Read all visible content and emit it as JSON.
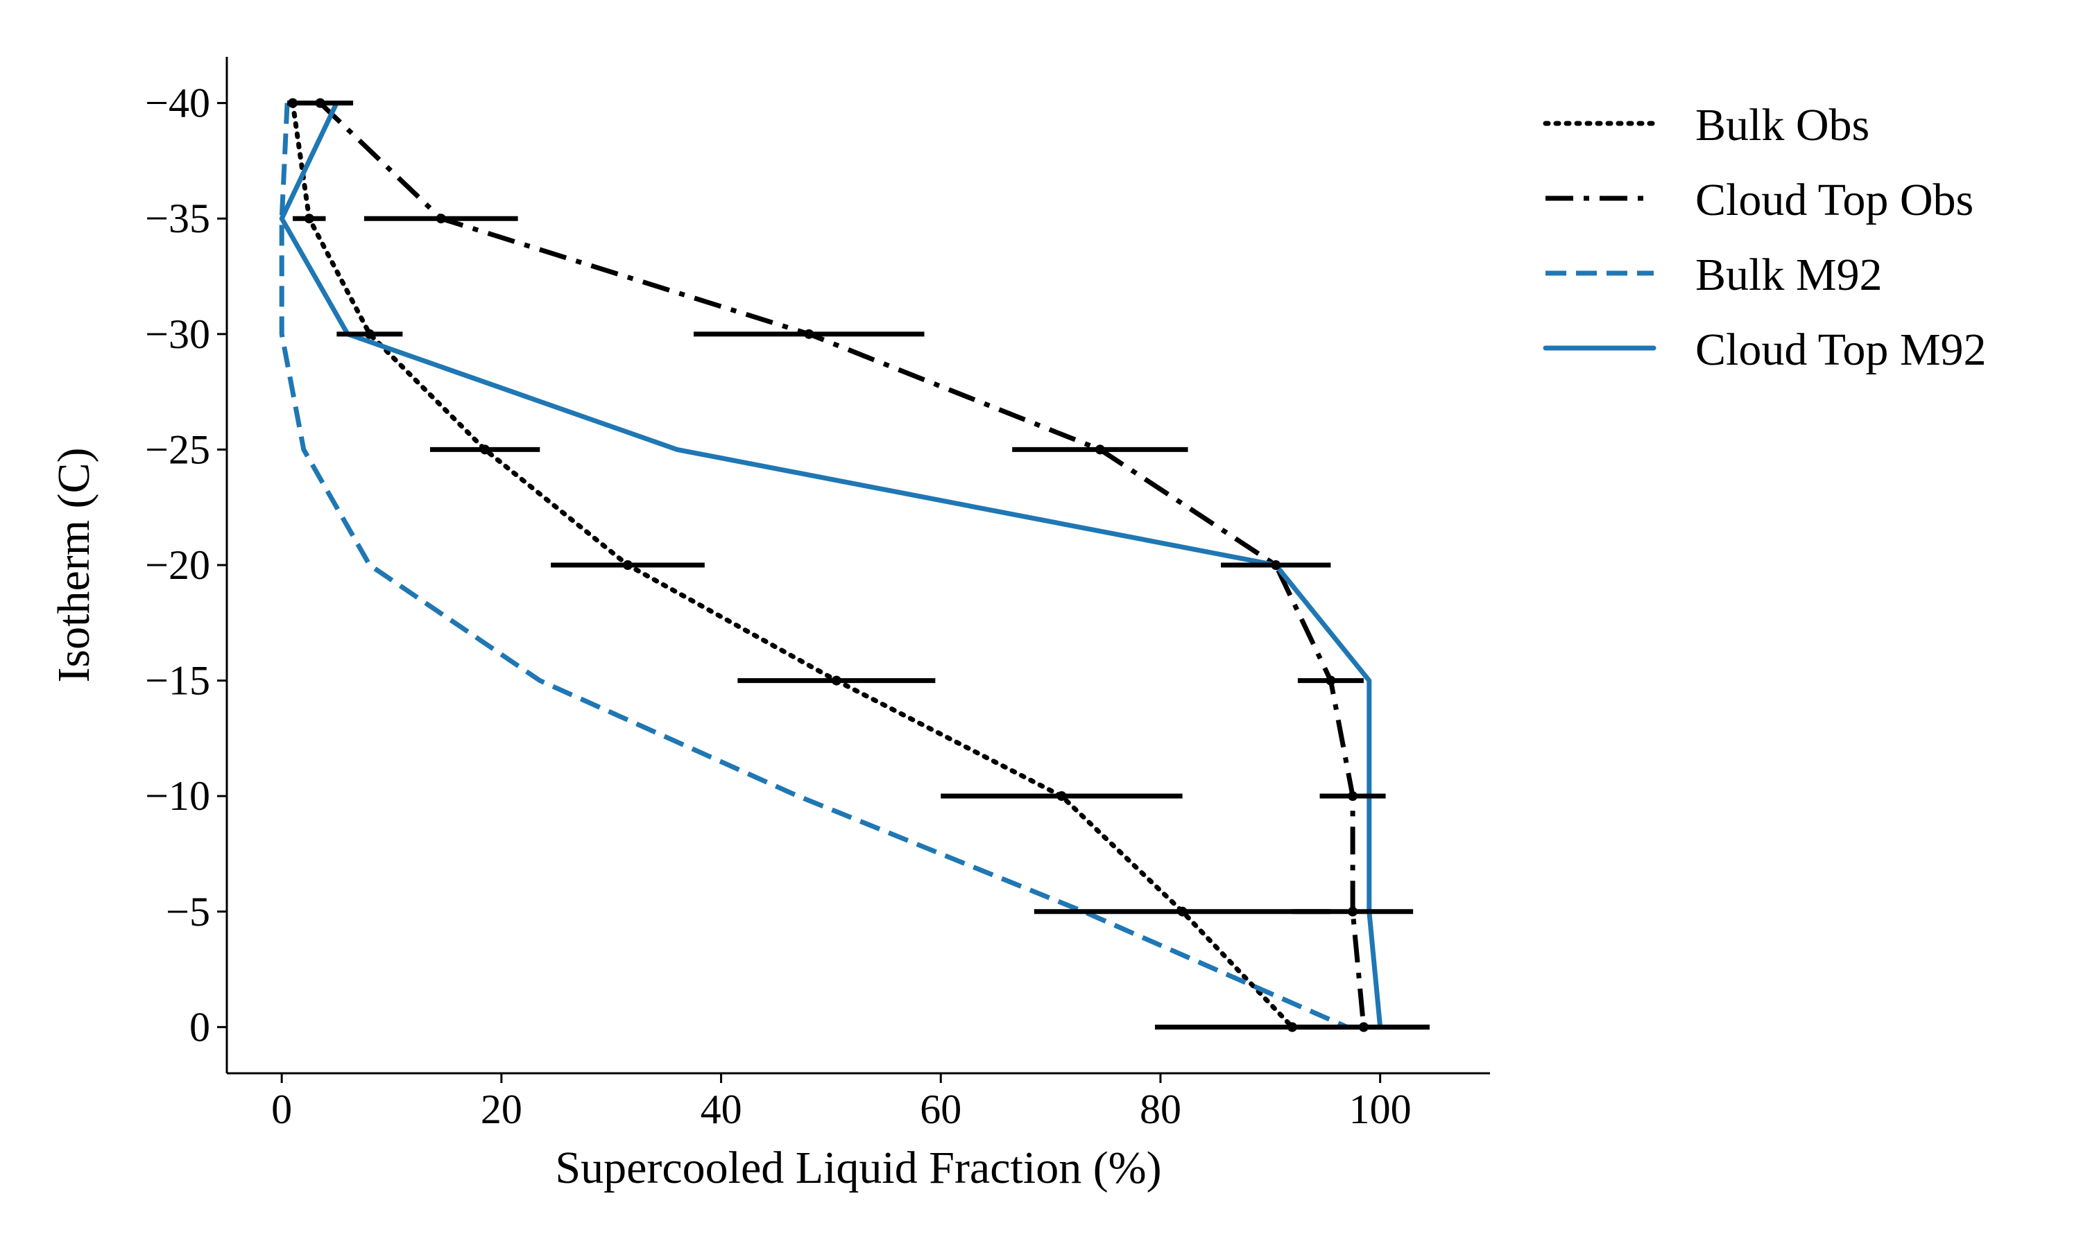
{
  "chart_data": {
    "type": "line",
    "xlabel": "Supercooled Liquid Fraction (%)",
    "ylabel": "Isotherm (C)",
    "xlim": [
      -5,
      110
    ],
    "ylim": [
      2,
      -42
    ],
    "y_inverted": true,
    "x_ticks": [
      0,
      20,
      40,
      60,
      80,
      100
    ],
    "x_tick_labels": [
      "0",
      "20",
      "40",
      "60",
      "80",
      "100"
    ],
    "y_ticks": [
      -40,
      -35,
      -30,
      -25,
      -20,
      -15,
      -10,
      -5,
      0
    ],
    "y_tick_labels": [
      "−40",
      "−35",
      "−30",
      "−25",
      "−20",
      "−15",
      "−10",
      "−5",
      "0"
    ],
    "y": [
      -40,
      -35,
      -30,
      -25,
      -20,
      -15,
      -10,
      -5,
      0
    ],
    "legend_position": "outside right, top",
    "grid": false,
    "series": [
      {
        "name": "Bulk Obs",
        "color": "#000000",
        "style": "dotted",
        "x": [
          1,
          2.5,
          8,
          18.5,
          31.5,
          50.5,
          71,
          82,
          92
        ],
        "err": [
          null,
          1.5,
          3,
          5,
          7,
          9,
          11,
          13.5,
          12.5
        ]
      },
      {
        "name": "Cloud Top Obs",
        "color": "#000000",
        "style": "dashdot",
        "x": [
          3.5,
          14.5,
          48,
          74.5,
          90.5,
          95.5,
          97.5,
          97.5,
          98.5
        ],
        "err": [
          3,
          7,
          10.5,
          8,
          5,
          3,
          3,
          5.5,
          6
        ]
      },
      {
        "name": "Bulk M92",
        "color": "#1f77b4",
        "style": "dashed",
        "x": [
          0.5,
          0,
          0,
          2,
          8,
          23.5,
          47,
          73,
          97
        ]
      },
      {
        "name": "Cloud Top M92",
        "color": "#1f77b4",
        "style": "solid",
        "x": [
          5,
          0,
          6,
          36,
          90.5,
          99,
          99,
          99,
          100
        ]
      }
    ]
  }
}
